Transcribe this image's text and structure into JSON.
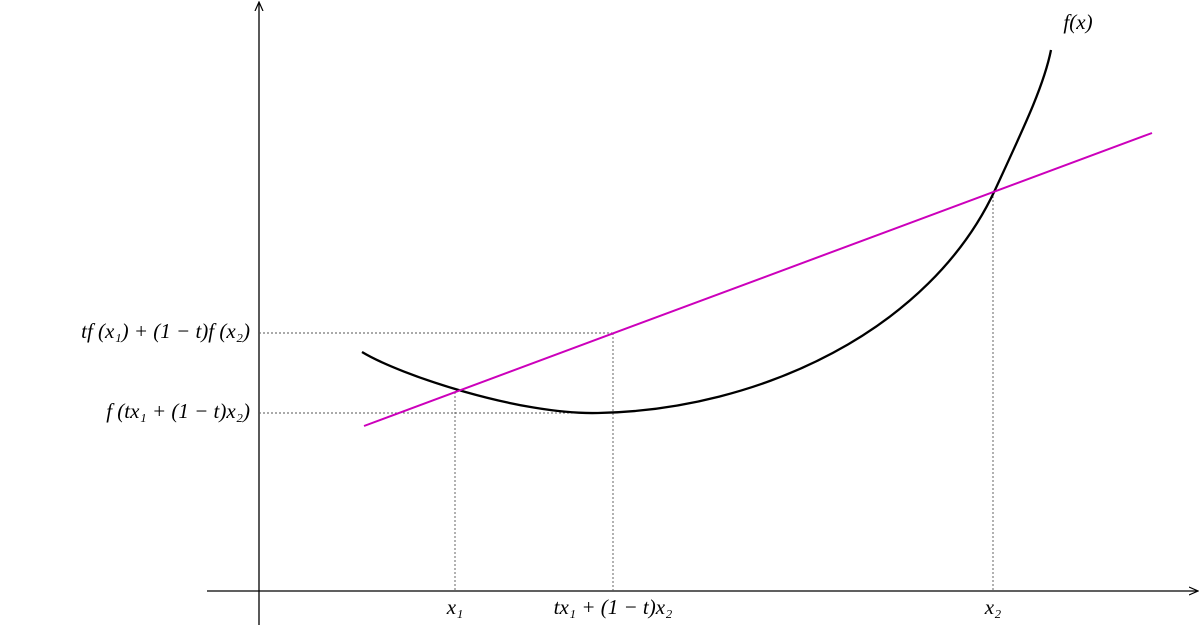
{
  "labels": {
    "curve": "f(x)",
    "x1": "x₁",
    "xt": "tx₁ + (1 − t)x₂",
    "x2": "x₂",
    "chord_value": "tf (x₁) + (1 − t)f (x₂)",
    "function_value": "f (tx₁ + (1 − t)x₂)"
  }
}
